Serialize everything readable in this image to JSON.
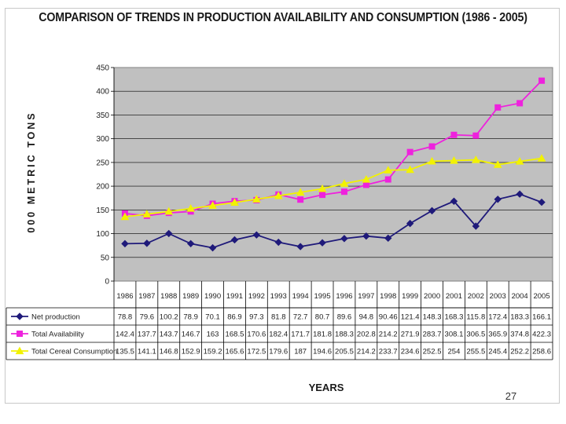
{
  "page_number": "27",
  "chart_data": {
    "type": "line",
    "title": "COMPARISON OF TRENDS IN PRODUCTION AVAILABILITY AND CONSUMPTION (1986 - 2005)",
    "xlabel": "YEARS",
    "ylabel": "000 METRIC TONS",
    "ylim": [
      0,
      450
    ],
    "yticks": [
      "0",
      "50",
      "100",
      "150",
      "200",
      "250",
      "300",
      "350",
      "400",
      "450"
    ],
    "grid": true,
    "legend": "data table below plot",
    "categories": [
      "1986",
      "1987",
      "1988",
      "1989",
      "1990",
      "1991",
      "1992",
      "1993",
      "1994",
      "1995",
      "1996",
      "1997",
      "1998",
      "1999",
      "2000",
      "2001",
      "2002",
      "2003",
      "2004",
      "2005"
    ],
    "series": [
      {
        "name": "Net production",
        "color": "#1f1a7a",
        "marker": "diamond",
        "values": [
          78.8,
          79.6,
          100.2,
          78.9,
          70.1,
          86.9,
          97.3,
          81.8,
          72.7,
          80.7,
          89.6,
          94.8,
          90.46,
          121.4,
          148.3,
          168.3,
          115.8,
          172.4,
          183.3,
          166.1
        ],
        "labels": [
          "78.8",
          "79.6",
          "100.2",
          "78.9",
          "70.1",
          "86.9",
          "97.3",
          "81.8",
          "72.7",
          "80.7",
          "89.6",
          "94.8",
          "90.46",
          "121.4",
          "148.3",
          "168.3",
          "115.8",
          "172.4",
          "183.3",
          "166.1"
        ]
      },
      {
        "name": "Total Availability",
        "color": "#ee22dd",
        "marker": "square",
        "values": [
          142.4,
          137.7,
          143.7,
          146.7,
          163,
          168.5,
          170.6,
          182.4,
          171.7,
          181.8,
          188.3,
          202.8,
          214.2,
          271.9,
          283.7,
          308.1,
          306.5,
          365.9,
          374.8,
          422.3
        ],
        "labels": [
          "142.4",
          "137.7",
          "143.7",
          "146.7",
          "163",
          "168.5",
          "170.6",
          "182.4",
          "171.7",
          "181.8",
          "188.3",
          "202.8",
          "214.2",
          "271.9",
          "283.7",
          "308.1",
          "306.5",
          "365.9",
          "374.8",
          "422.3"
        ]
      },
      {
        "name": "Total Cereal Consumption",
        "color": "#f2f200",
        "marker": "triangle",
        "values": [
          135.5,
          141.1,
          146.8,
          152.9,
          159.2,
          165.6,
          172.5,
          179.6,
          187,
          194.6,
          205.5,
          214.2,
          233.7,
          234.6,
          252.5,
          254,
          255.5,
          245.4,
          252.2,
          258.6
        ],
        "labels": [
          "135.5",
          "141.1",
          "146.8",
          "152.9",
          "159.2",
          "165.6",
          "172.5",
          "179.6",
          "187",
          "194.6",
          "205.5",
          "214.2",
          "233.7",
          "234.6",
          "252.5",
          "254",
          "255.5",
          "245.4",
          "252.2",
          "258.6"
        ]
      }
    ]
  }
}
